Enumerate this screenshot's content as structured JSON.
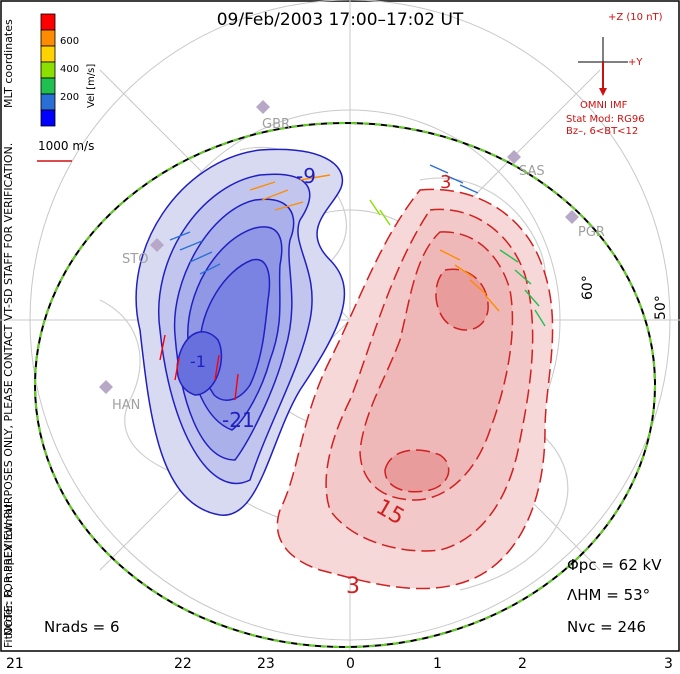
{
  "title": "09/Feb/2003 17:00–17:02 UT",
  "mlt_labels": [
    "21",
    "22",
    "23",
    "0",
    "1",
    "2",
    "3"
  ],
  "latitude_labels": [
    "60°",
    "50°"
  ],
  "velocity_scale": {
    "title": "Vel [m/s]",
    "ticks": [
      "600",
      "400",
      "200"
    ],
    "colors": [
      "#ff0000",
      "#ff8c00",
      "#ffd200",
      "#8be000",
      "#20c050",
      "#2a6fd6",
      "#0000ff"
    ]
  },
  "reference_vector": "1000 m/s",
  "imf": {
    "z_label": "+Z (10 nT)",
    "y_label": "+Y",
    "source": "OMNI IMF",
    "stat_model": "Stat Mod: RG96",
    "condition": "Bz–, 6<BT<12"
  },
  "sites": [
    "GBR",
    "SAS",
    "PGR",
    "STO",
    "HAN"
  ],
  "contour_labels": {
    "neg": [
      "-9",
      "-1",
      "-21"
    ],
    "pos": [
      "3",
      "15",
      "3"
    ]
  },
  "notes": {
    "warning": "NOTE: FOR PREVIEW PURPOSES ONLY, PLEASE CONTACT VT-SD STAFF FOR VERIFICATION.",
    "fit": "FitOrder: 8, mapEX format",
    "coords": "MLT coordinates"
  },
  "stats": {
    "phi_pc": "Φpc = 62 kV",
    "lambda_hm": "ΛHM = 53°",
    "n_vc": "Nvc = 246",
    "n_rads": "Nrads = 6"
  },
  "colors": {
    "negative": "#2020c0",
    "positive": "#d02020",
    "boundary": "#60d020"
  }
}
